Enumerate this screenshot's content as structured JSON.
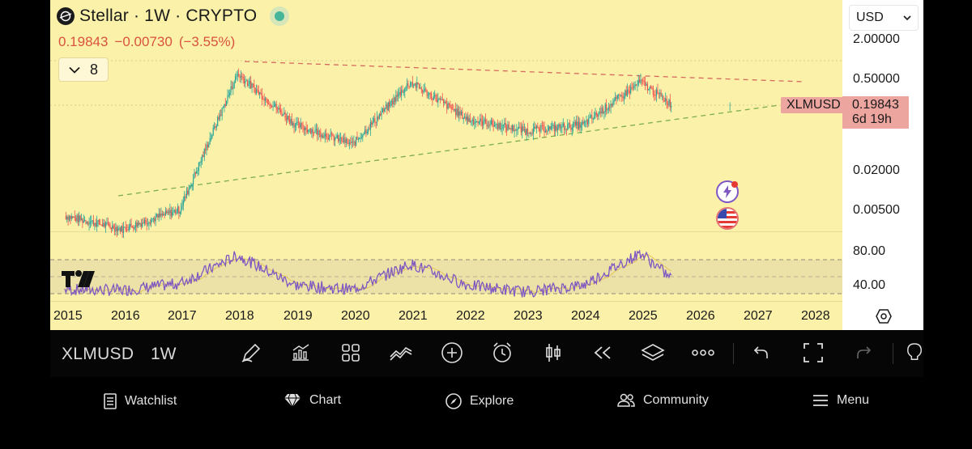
{
  "header": {
    "title": "Stellar · 1W · CRYPTO",
    "price": "0.19843",
    "change": "−0.00730",
    "change_pct": "(−3.55%)",
    "indicator_count": "8"
  },
  "price_axis": {
    "currency": "USD",
    "labels": [
      "2.00000",
      "0.50000",
      "0.02000",
      "0.00500"
    ],
    "symbol_tag": "XLMUSD",
    "last_price": "0.19843",
    "countdown": "6d 19h"
  },
  "rsi_axis": {
    "labels": [
      "80.00",
      "40.00"
    ]
  },
  "time_axis": {
    "years": [
      "2015",
      "2016",
      "2017",
      "2018",
      "2019",
      "2020",
      "2021",
      "2022",
      "2023",
      "2024",
      "2025",
      "2026",
      "2027",
      "2028"
    ]
  },
  "toolbar": {
    "symbol": "XLMUSD",
    "interval": "1W",
    "icons": [
      "draw-icon",
      "chart-type-icon",
      "layout-grid-icon",
      "indicators-icon",
      "add-icon",
      "alert-icon",
      "candle-icon",
      "replay-icon",
      "layers-icon",
      "more-icon",
      "undo-icon",
      "fullscreen-icon",
      "redo-icon",
      "lightbulb-icon"
    ]
  },
  "nav": {
    "watchlist": "Watchlist",
    "chart": "Chart",
    "explore": "Explore",
    "community": "Community",
    "menu": "Menu"
  },
  "colors": {
    "chart_bg": "#fbf1a9",
    "up": "#26a69a",
    "down": "#ef5350",
    "rsi_line": "#7e57c2",
    "resistance": "#e57373",
    "support": "#66bb6a"
  },
  "chart_data": {
    "type": "candlestick",
    "scale": "log",
    "series": [
      {
        "name": "XLMUSD",
        "x": [
          "2015",
          "2016",
          "2017",
          "2018",
          "2019",
          "2020",
          "2021",
          "2022",
          "2023",
          "2024",
          "2025",
          "2026"
        ],
        "y": [
          0.004,
          0.0025,
          0.005,
          0.6,
          0.1,
          0.05,
          0.45,
          0.12,
          0.08,
          0.1,
          0.45,
          0.19843
        ]
      },
      {
        "name": "RSI",
        "x": [
          "2015",
          "2016",
          "2017",
          "2018",
          "2019",
          "2020",
          "2021",
          "2022",
          "2023",
          "2024",
          "2025",
          "2026"
        ],
        "y": [
          45,
          44,
          52,
          85,
          50,
          45,
          75,
          50,
          42,
          50,
          88,
          57
        ]
      }
    ],
    "rsi_range": [
      40,
      80
    ]
  }
}
